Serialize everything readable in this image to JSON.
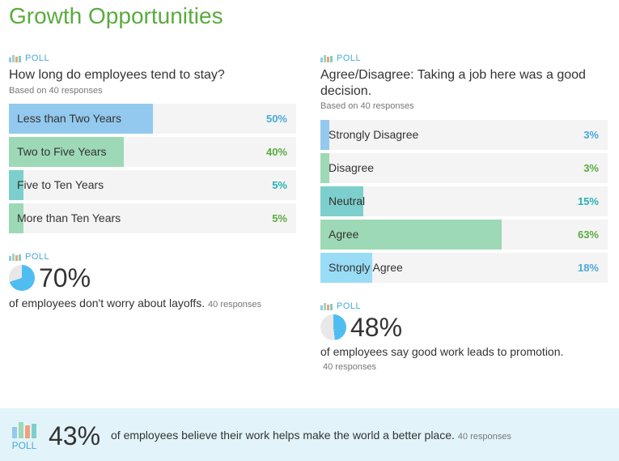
{
  "title": "Growth Opportunities",
  "poll_tag": "POLL",
  "colors": {
    "blue": "#93c9ee",
    "green": "#9dd9b6",
    "teal": "#7ccfcc",
    "light_blue": "#98dcf5",
    "pct_blue": "#4aa8d8",
    "pct_green": "#5aab3f",
    "pct_teal": "#26b0b0"
  },
  "poll1": {
    "question": "How long do employees tend to stay?",
    "based_on": "Based on 40 responses",
    "options": [
      {
        "label": "Less than Two Years",
        "pct": "50%",
        "value": 50
      },
      {
        "label": "Two to Five Years",
        "pct": "40%",
        "value": 40
      },
      {
        "label": "Five to Ten Years",
        "pct": "5%",
        "value": 5
      },
      {
        "label": "More than Ten Years",
        "pct": "5%",
        "value": 5
      }
    ]
  },
  "poll2": {
    "question": "Agree/Disagree: Taking a job here was a good decision.",
    "based_on": "Based on 40 responses",
    "options": [
      {
        "label": "Strongly Disagree",
        "pct": "3%",
        "value": 3
      },
      {
        "label": "Disagree",
        "pct": "3%",
        "value": 3
      },
      {
        "label": "Neutral",
        "pct": "15%",
        "value": 15
      },
      {
        "label": "Agree",
        "pct": "63%",
        "value": 63
      },
      {
        "label": "Strongly Agree",
        "pct": "18%",
        "value": 18
      }
    ]
  },
  "stat1": {
    "value": "70%",
    "fraction": 0.7,
    "text": "of employees don't worry about layoffs.",
    "responses": "40 responses"
  },
  "stat2": {
    "value": "48%",
    "fraction": 0.48,
    "text": "of employees say good work leads to promotion.",
    "responses": "40 responses"
  },
  "banner": {
    "poll_label": "POLL",
    "value": "43%",
    "text": "of employees believe their work helps make the world a better place.",
    "responses": "40 responses"
  }
}
